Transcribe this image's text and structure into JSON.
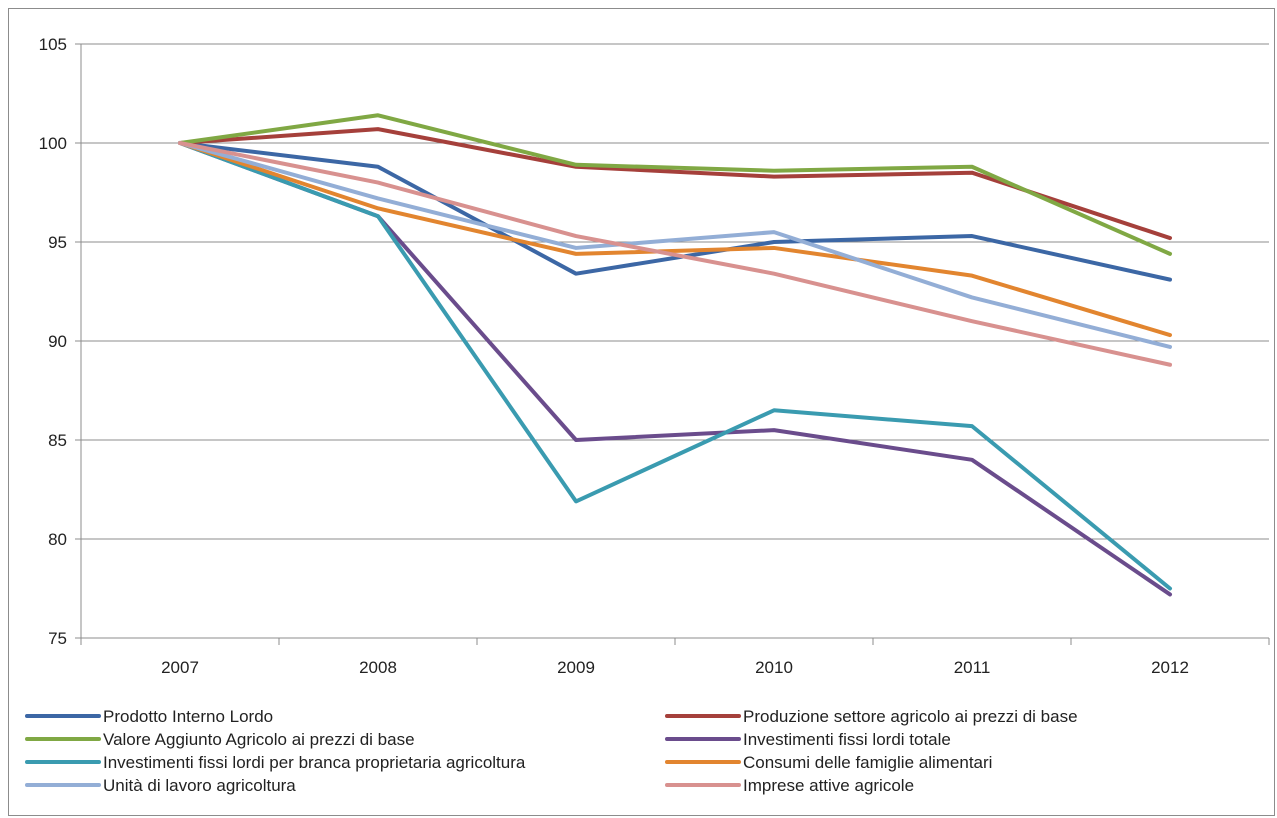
{
  "chart_data": {
    "type": "line",
    "categories": [
      "2007",
      "2008",
      "2009",
      "2010",
      "2011",
      "2012"
    ],
    "ylim": [
      75,
      105
    ],
    "yticks": [
      "75",
      "80",
      "85",
      "90",
      "95",
      "100",
      "105"
    ],
    "grid": "horizontal",
    "legend_position": "bottom",
    "series": [
      {
        "name": "Prodotto Interno Lordo",
        "color": "#3c67a5",
        "values": [
          100,
          98.8,
          93.4,
          95.0,
          95.3,
          93.1
        ]
      },
      {
        "name": "Produzione settore agricolo ai prezzi di base",
        "color": "#a5403b",
        "values": [
          100,
          100.7,
          98.8,
          98.3,
          98.5,
          95.2
        ]
      },
      {
        "name": "Valore Aggiunto Agricolo ai prezzi di base",
        "color": "#80a844",
        "values": [
          100,
          101.4,
          98.9,
          98.6,
          98.8,
          94.4
        ]
      },
      {
        "name": "Investimenti fissi lordi totale",
        "color": "#6a4c8c",
        "values": [
          100,
          96.3,
          85.0,
          85.5,
          84.0,
          77.2
        ]
      },
      {
        "name": "Investimenti fissi lordi per branca proprietaria agricoltura",
        "color": "#3a9bb0",
        "values": [
          100,
          96.3,
          81.9,
          86.5,
          85.7,
          77.5
        ]
      },
      {
        "name": "Consumi delle famiglie  alimentari",
        "color": "#e2852f",
        "values": [
          100,
          96.7,
          94.4,
          94.7,
          93.3,
          90.3
        ]
      },
      {
        "name": "Unità di lavoro agricoltura",
        "color": "#93aed6",
        "values": [
          100,
          97.2,
          94.7,
          95.5,
          92.2,
          89.7
        ]
      },
      {
        "name": "Imprese attive agricole",
        "color": "#d8918f",
        "values": [
          100,
          98.0,
          95.3,
          93.4,
          91.0,
          88.8
        ]
      }
    ]
  }
}
